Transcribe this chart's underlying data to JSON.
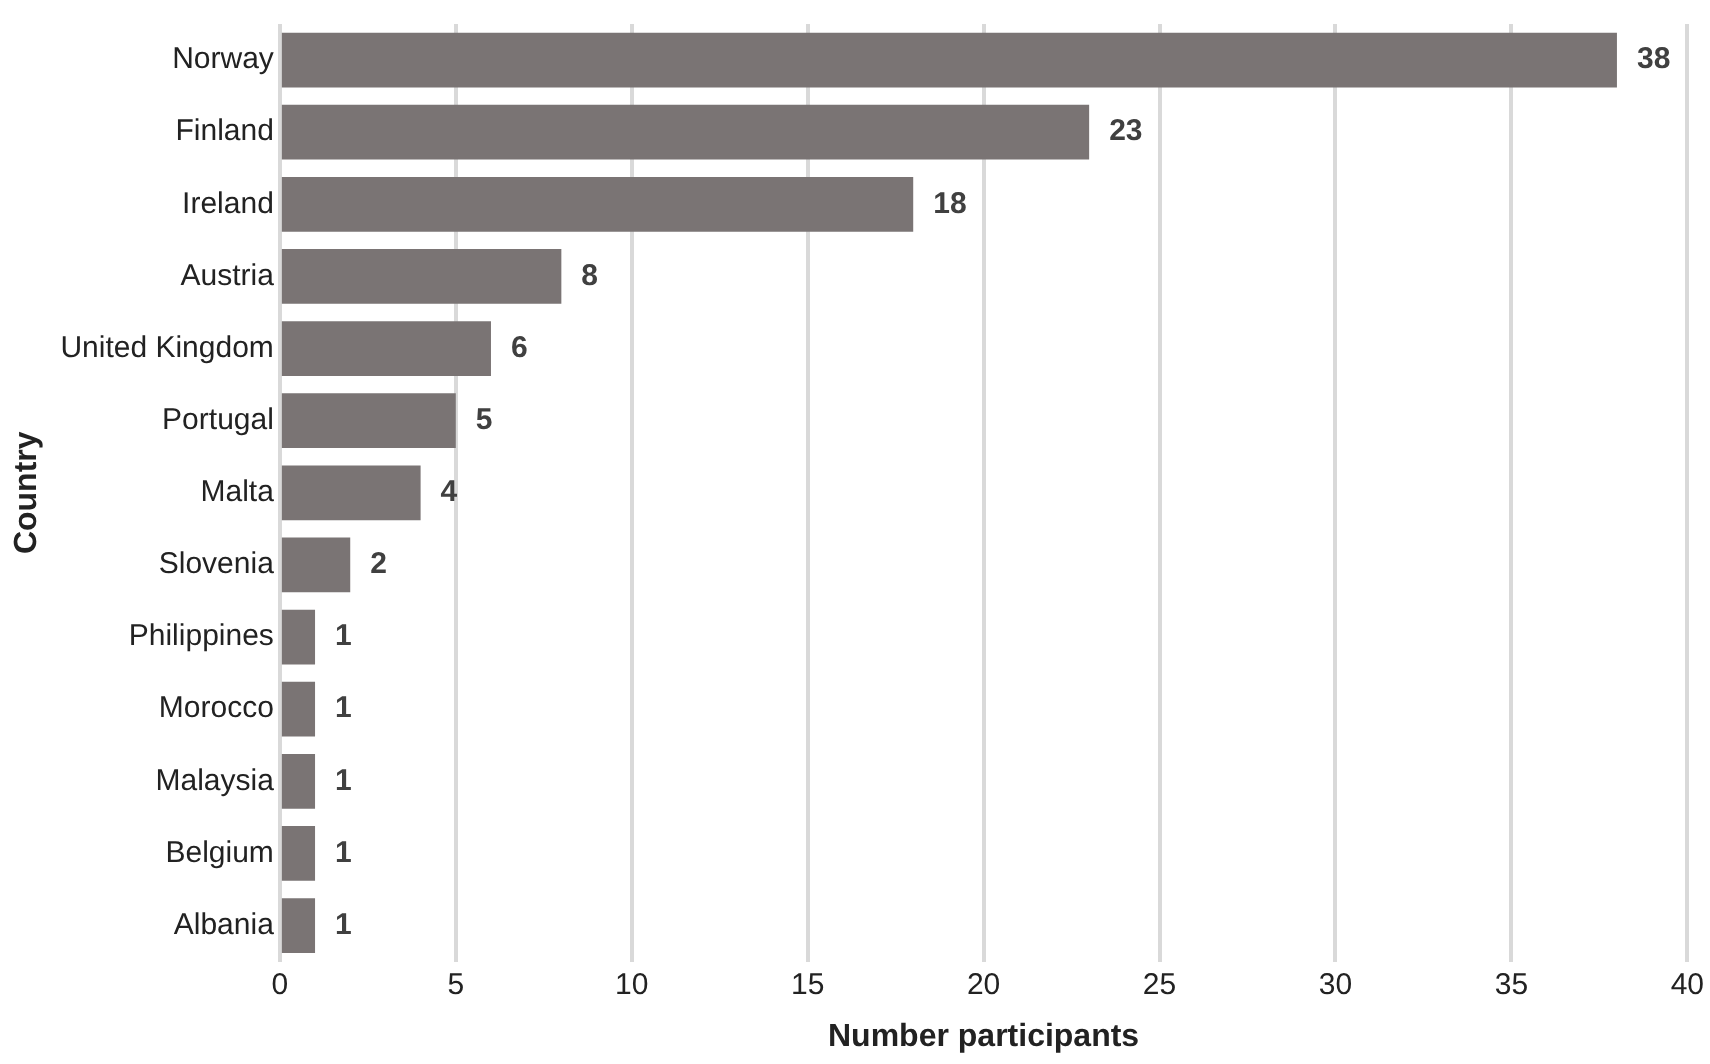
{
  "chart_data": {
    "type": "bar",
    "orientation": "horizontal",
    "xlabel": "Number participants",
    "ylabel": "Country",
    "categories": [
      "Norway",
      "Finland",
      "Ireland",
      "Austria",
      "United Kingdom",
      "Portugal",
      "Malta",
      "Slovenia",
      "Philippines",
      "Morocco",
      "Malaysia",
      "Belgium",
      "Albania"
    ],
    "values": [
      38,
      23,
      18,
      8,
      6,
      5,
      4,
      2,
      1,
      1,
      1,
      1,
      1
    ],
    "color": "#7a7474",
    "xlim": [
      0,
      40
    ],
    "xticks": [
      0,
      5,
      10,
      15,
      20,
      25,
      30,
      35,
      40
    ],
    "grid": "x",
    "data_labels": true
  }
}
